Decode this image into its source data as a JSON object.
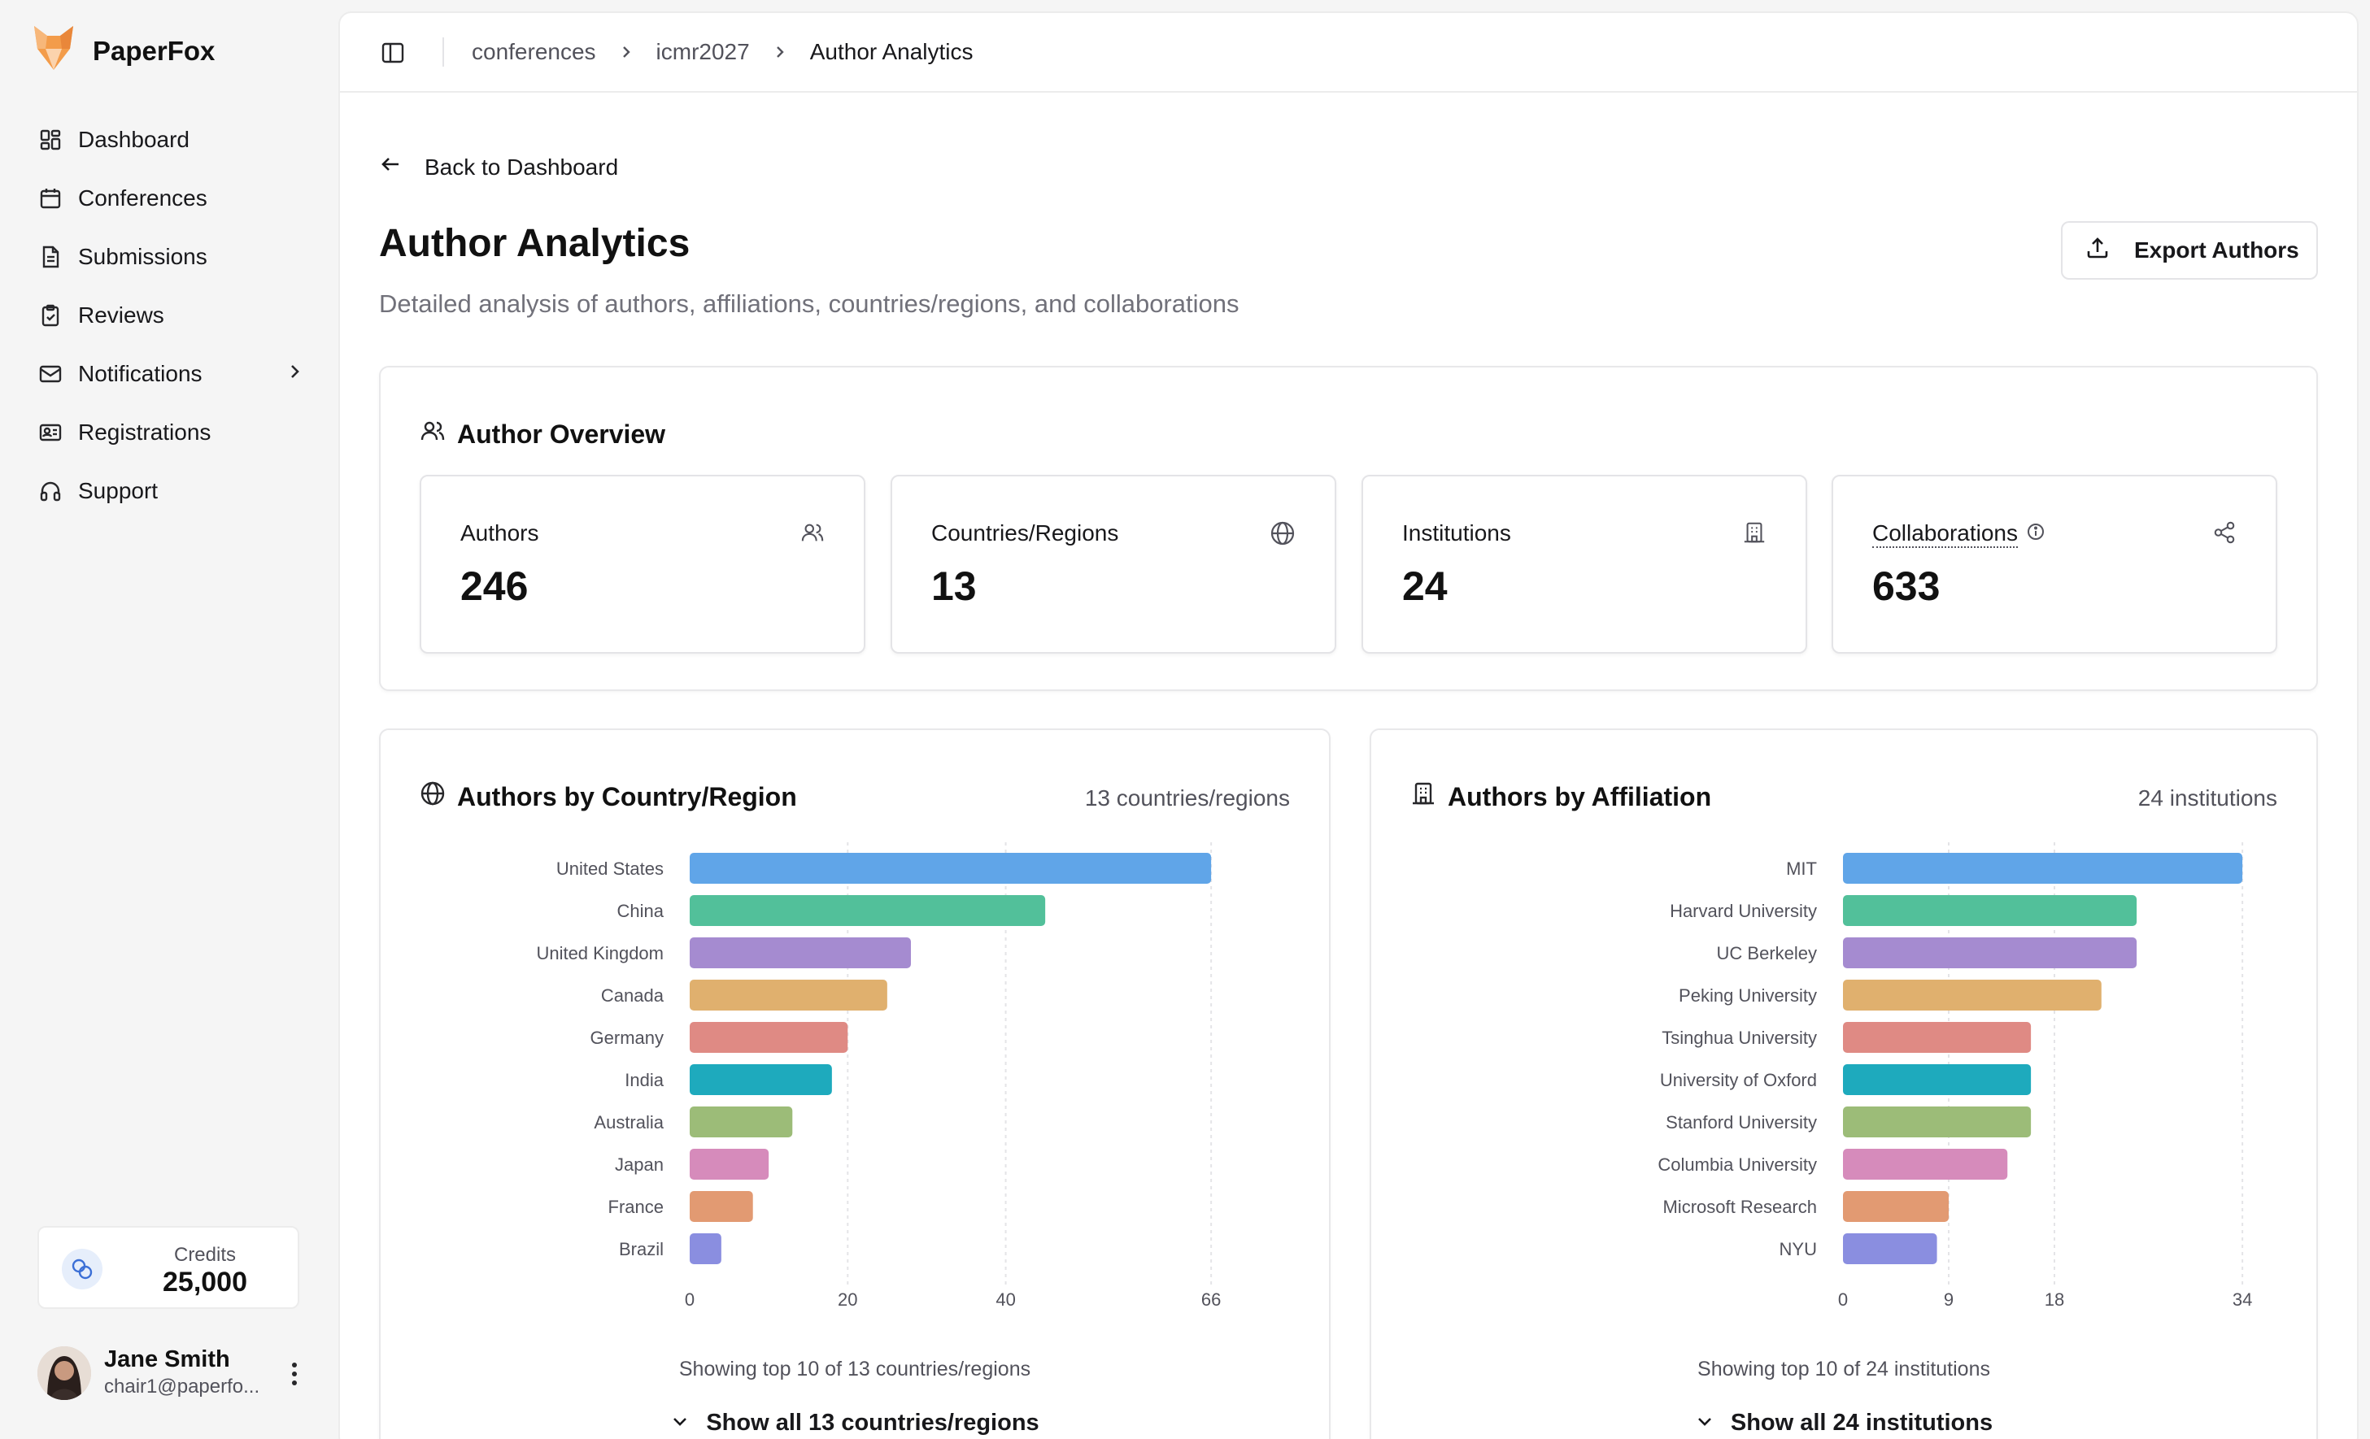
{
  "app": {
    "name": "PaperFox"
  },
  "sidebar": {
    "items": [
      {
        "label": "Dashboard",
        "icon": "dashboard-icon"
      },
      {
        "label": "Conferences",
        "icon": "calendar-icon"
      },
      {
        "label": "Submissions",
        "icon": "file-icon"
      },
      {
        "label": "Reviews",
        "icon": "clipboard-check-icon"
      },
      {
        "label": "Notifications",
        "icon": "mail-icon"
      },
      {
        "label": "Registrations",
        "icon": "id-card-icon"
      },
      {
        "label": "Support",
        "icon": "headphones-icon"
      }
    ],
    "credits_label": "Credits",
    "credits_value": "25,000",
    "user_name": "Jane Smith",
    "user_email": "chair1@paperfo..."
  },
  "breadcrumb": {
    "items": [
      "conferences",
      "icmr2027",
      "Author Analytics"
    ]
  },
  "page": {
    "back_label": "Back to Dashboard",
    "title": "Author Analytics",
    "subtitle": "Detailed analysis of authors, affiliations, countries/regions, and collaborations",
    "export_label": "Export Authors"
  },
  "overview": {
    "title": "Author Overview",
    "stats": [
      {
        "label": "Authors",
        "value": "246",
        "icon": "users-icon"
      },
      {
        "label": "Countries/Regions",
        "value": "13",
        "icon": "globe-icon"
      },
      {
        "label": "Institutions",
        "value": "24",
        "icon": "building-icon"
      },
      {
        "label": "Collaborations",
        "value": "633",
        "icon": "share-icon"
      }
    ]
  },
  "country_panel": {
    "title": "Authors by Country/Region",
    "count": "13 countries/regions",
    "showing": "Showing top 10 of 13 countries/regions",
    "show_all": "Show all 13 countries/regions"
  },
  "affiliation_panel": {
    "title": "Authors by Affiliation",
    "count": "24 institutions",
    "showing": "Showing top 10 of 24 institutions",
    "show_all": "Show all 24 institutions"
  },
  "chart_data": [
    {
      "type": "bar",
      "orientation": "horizontal",
      "categories": [
        "United States",
        "China",
        "United Kingdom",
        "Canada",
        "Germany",
        "India",
        "Australia",
        "Japan",
        "France",
        "Brazil"
      ],
      "values": [
        66,
        45,
        28,
        25,
        20,
        18,
        13,
        10,
        8,
        4
      ],
      "xticks": [
        0,
        20,
        40,
        66
      ],
      "xlim": [
        0,
        70
      ],
      "grid": true,
      "colors": [
        "#60a5e8",
        "#52c09a",
        "#a58bd0",
        "#e0b06e",
        "#df8a84",
        "#1eaabd",
        "#9cbc78",
        "#d68bbb",
        "#e29a72",
        "#8a8ee0"
      ]
    },
    {
      "type": "bar",
      "orientation": "horizontal",
      "categories": [
        "MIT",
        "Harvard University",
        "UC Berkeley",
        "Peking University",
        "Tsinghua University",
        "University of Oxford",
        "Stanford University",
        "Columbia University",
        "Microsoft Research",
        "NYU"
      ],
      "values": [
        34,
        25,
        25,
        22,
        16,
        16,
        16,
        14,
        9,
        8
      ],
      "xticks": [
        0,
        9,
        18,
        34
      ],
      "xlim": [
        0,
        36
      ],
      "grid": true,
      "colors": [
        "#60a5e8",
        "#52c09a",
        "#a58bd0",
        "#e0b06e",
        "#df8a84",
        "#1eaabd",
        "#9cbc78",
        "#d68bbb",
        "#e29a72",
        "#8a8ee0"
      ]
    }
  ]
}
